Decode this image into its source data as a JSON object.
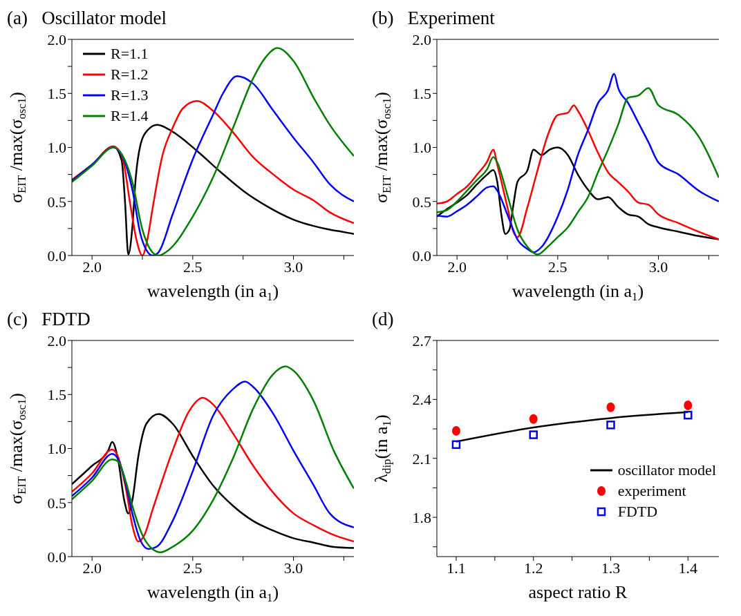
{
  "chart_data": [
    {
      "type": "line",
      "title": "(a)   Oscillator model",
      "xlabel": "wavelength (in a$_{1}$)",
      "ylabel": "σ$_{EIT}$ /max(σ$_{osc1}$)",
      "xlim": [
        1.9,
        3.3
      ],
      "xticks": [
        {
          "value": 2,
          "label": "2.0"
        },
        {
          "value": 2.25,
          "label": null
        },
        2.5,
        {
          "value": 2.75,
          "label": null
        },
        {
          "value": 3,
          "label": "3.0"
        },
        {
          "value": 3.25,
          "label": null
        }
      ],
      "ylim": [
        0,
        2
      ],
      "yticks": [
        {
          "value": 0,
          "label": "0.0"
        },
        {
          "value": 0.25,
          "label": null
        },
        0.5,
        {
          "value": 0.75,
          "label": null
        },
        {
          "value": 1,
          "label": "1.0"
        },
        {
          "value": 1.25,
          "label": null
        },
        1.5,
        {
          "value": 1.75,
          "label": null
        },
        {
          "value": 2,
          "label": "2.0"
        }
      ],
      "legend": "top left",
      "series": [
        {
          "name": "R=1.1",
          "color": "#000000",
          "x": [
            1.9,
            2.0,
            2.106,
            2.147,
            2.164,
            2.18,
            2.2,
            2.217,
            2.24,
            2.276,
            2.323,
            2.405,
            2.52,
            2.64,
            2.757,
            2.874,
            2.99,
            3.18,
            3.24,
            3.3
          ],
          "values": [
            0.7,
            0.84,
            1.01,
            0.88,
            0.49,
            0.01,
            0.26,
            0.72,
            1.02,
            1.16,
            1.21,
            1.14,
            0.97,
            0.77,
            0.59,
            0.45,
            0.34,
            0.24,
            0.22,
            0.2
          ]
        },
        {
          "name": "R=1.2",
          "color": "#ff0000",
          "x": [
            1.9,
            2.0,
            2.106,
            2.15,
            2.19,
            2.22,
            2.25,
            2.275,
            2.3,
            2.35,
            2.4,
            2.45,
            2.52,
            2.6,
            2.7,
            2.8,
            2.9,
            3.0,
            3.1,
            3.18,
            3.3
          ],
          "values": [
            0.7,
            0.84,
            1.01,
            0.91,
            0.47,
            0.15,
            0.0,
            0.15,
            0.43,
            0.93,
            1.18,
            1.36,
            1.43,
            1.34,
            1.14,
            0.91,
            0.75,
            0.61,
            0.51,
            0.4,
            0.3
          ]
        },
        {
          "name": "R=1.3",
          "color": "#0000ff",
          "x": [
            1.9,
            2.0,
            2.106,
            2.15,
            2.2,
            2.24,
            2.27,
            2.3,
            2.33,
            2.4,
            2.5,
            2.6,
            2.65,
            2.72,
            2.8,
            2.9,
            3.0,
            3.1,
            3.18,
            3.3
          ],
          "values": [
            0.69,
            0.84,
            1.0,
            0.92,
            0.61,
            0.2,
            0.05,
            0.0,
            0.03,
            0.38,
            0.89,
            1.3,
            1.5,
            1.66,
            1.59,
            1.34,
            1.09,
            0.86,
            0.66,
            0.5
          ]
        },
        {
          "name": "R=1.4",
          "color": "#008000",
          "x": [
            1.9,
            2.0,
            2.106,
            2.15,
            2.2,
            2.25,
            2.3,
            2.33,
            2.38,
            2.5,
            2.6,
            2.7,
            2.8,
            2.86,
            2.92,
            3.0,
            3.1,
            3.18,
            3.3
          ],
          "values": [
            0.68,
            0.83,
            1.0,
            0.93,
            0.68,
            0.24,
            0.03,
            0.0,
            0.05,
            0.36,
            0.72,
            1.18,
            1.64,
            1.83,
            1.92,
            1.8,
            1.46,
            1.21,
            0.92
          ]
        }
      ]
    },
    {
      "type": "line",
      "title": "(b)   Experiment",
      "xlabel": "wavelength (in a$_{1}$)",
      "ylabel": "σ$_{EIT}$ /max(σ$_{osc1}$)",
      "xlim": [
        1.9,
        3.3
      ],
      "xticks": [
        {
          "value": 2,
          "label": "2.0"
        },
        {
          "value": 2.25,
          "label": null
        },
        2.5,
        {
          "value": 2.75,
          "label": null
        },
        {
          "value": 3,
          "label": "3.0"
        },
        {
          "value": 3.25,
          "label": null
        }
      ],
      "ylim": [
        0,
        2
      ],
      "yticks": [
        {
          "value": 0,
          "label": "0.0"
        },
        {
          "value": 0.25,
          "label": null
        },
        0.5,
        {
          "value": 0.75,
          "label": null
        },
        {
          "value": 1,
          "label": "1.0"
        },
        {
          "value": 1.25,
          "label": null
        },
        1.5,
        {
          "value": 1.75,
          "label": null
        },
        {
          "value": 2,
          "label": "2.0"
        }
      ],
      "series": [
        {
          "color": "#000000",
          "x": [
            1.9,
            1.95,
            2.0,
            2.05,
            2.1,
            2.15,
            2.18,
            2.2,
            2.22,
            2.24,
            2.26,
            2.28,
            2.3,
            2.35,
            2.38,
            2.42,
            2.46,
            2.5,
            2.55,
            2.6,
            2.65,
            2.7,
            2.75,
            2.8,
            2.85,
            2.9,
            2.95,
            3.0,
            3.1,
            3.2,
            3.3
          ],
          "values": [
            0.36,
            0.43,
            0.49,
            0.56,
            0.66,
            0.75,
            0.79,
            0.68,
            0.38,
            0.2,
            0.24,
            0.47,
            0.68,
            0.79,
            0.98,
            0.93,
            0.98,
            1.0,
            0.93,
            0.75,
            0.61,
            0.52,
            0.54,
            0.45,
            0.38,
            0.36,
            0.29,
            0.26,
            0.22,
            0.18,
            0.15
          ]
        },
        {
          "color": "#ff0000",
          "x": [
            1.9,
            1.95,
            2.0,
            2.05,
            2.1,
            2.15,
            2.18,
            2.2,
            2.25,
            2.28,
            2.3,
            2.35,
            2.4,
            2.45,
            2.5,
            2.55,
            2.58,
            2.6,
            2.65,
            2.7,
            2.75,
            2.8,
            2.85,
            2.9,
            2.95,
            3.0,
            3.1,
            3.2,
            3.3
          ],
          "values": [
            0.48,
            0.5,
            0.57,
            0.64,
            0.75,
            0.87,
            0.98,
            0.84,
            0.45,
            0.22,
            0.17,
            0.45,
            0.79,
            1.11,
            1.3,
            1.32,
            1.39,
            1.34,
            1.16,
            0.95,
            0.77,
            0.68,
            0.59,
            0.49,
            0.47,
            0.38,
            0.3,
            0.22,
            0.15
          ]
        },
        {
          "color": "#0000ff",
          "x": [
            1.9,
            1.95,
            2.0,
            2.05,
            2.1,
            2.15,
            2.18,
            2.2,
            2.25,
            2.3,
            2.35,
            2.38,
            2.42,
            2.5,
            2.55,
            2.6,
            2.65,
            2.7,
            2.75,
            2.78,
            2.8,
            2.85,
            2.9,
            2.95,
            3.0,
            3.1,
            3.2,
            3.3
          ],
          "values": [
            0.37,
            0.36,
            0.41,
            0.47,
            0.55,
            0.63,
            0.64,
            0.6,
            0.38,
            0.15,
            0.06,
            0.03,
            0.08,
            0.36,
            0.61,
            0.93,
            1.16,
            1.41,
            1.53,
            1.68,
            1.55,
            1.41,
            1.23,
            1.05,
            0.86,
            0.75,
            0.6,
            0.5
          ]
        },
        {
          "color": "#008000",
          "x": [
            1.9,
            1.95,
            2.0,
            2.05,
            2.1,
            2.15,
            2.18,
            2.2,
            2.25,
            2.3,
            2.35,
            2.4,
            2.45,
            2.5,
            2.55,
            2.6,
            2.65,
            2.7,
            2.75,
            2.8,
            2.85,
            2.9,
            2.95,
            3.0,
            3.1,
            3.2,
            3.3
          ],
          "values": [
            0.4,
            0.42,
            0.5,
            0.6,
            0.7,
            0.8,
            0.91,
            0.86,
            0.56,
            0.24,
            0.08,
            0.01,
            0.08,
            0.17,
            0.26,
            0.4,
            0.54,
            0.77,
            0.98,
            1.21,
            1.46,
            1.48,
            1.55,
            1.39,
            1.3,
            1.1,
            0.72
          ]
        }
      ]
    },
    {
      "type": "line",
      "title": "(c)   FDTD",
      "xlabel": "wavelength (in a$_{1}$)",
      "ylabel": "σ$_{EIT}$ /max(σ$_{osc1}$)",
      "xlim": [
        1.9,
        3.3
      ],
      "xticks": [
        {
          "value": 2,
          "label": "2.0"
        },
        {
          "value": 2.25,
          "label": null
        },
        2.5,
        {
          "value": 2.75,
          "label": null
        },
        {
          "value": 3,
          "label": "3.0"
        },
        {
          "value": 3.25,
          "label": null
        }
      ],
      "ylim": [
        0,
        2
      ],
      "yticks": [
        {
          "value": 0,
          "label": "0.0"
        },
        {
          "value": 0.25,
          "label": null
        },
        0.5,
        {
          "value": 0.75,
          "label": null
        },
        {
          "value": 1,
          "label": "1.0"
        },
        {
          "value": 1.25,
          "label": null
        },
        1.5,
        {
          "value": 1.75,
          "label": null
        },
        {
          "value": 2,
          "label": "2.0"
        }
      ],
      "series": [
        {
          "color": "#000000",
          "x": [
            1.9,
            2.0,
            2.08,
            2.1,
            2.13,
            2.16,
            2.18,
            2.2,
            2.23,
            2.27,
            2.33,
            2.4,
            2.5,
            2.6,
            2.7,
            2.8,
            2.9,
            3.0,
            3.1,
            3.2,
            3.3
          ],
          "values": [
            0.67,
            0.84,
            0.98,
            1.06,
            0.89,
            0.52,
            0.4,
            0.52,
            0.93,
            1.23,
            1.32,
            1.23,
            0.93,
            0.66,
            0.47,
            0.33,
            0.24,
            0.17,
            0.13,
            0.09,
            0.08
          ]
        },
        {
          "color": "#ff0000",
          "x": [
            1.9,
            2.0,
            2.1,
            2.13,
            2.17,
            2.2,
            2.23,
            2.26,
            2.3,
            2.4,
            2.48,
            2.55,
            2.6,
            2.7,
            2.8,
            2.9,
            3.0,
            3.1,
            3.2,
            3.3
          ],
          "values": [
            0.6,
            0.77,
            0.99,
            0.92,
            0.61,
            0.29,
            0.14,
            0.2,
            0.43,
            0.98,
            1.34,
            1.47,
            1.41,
            1.14,
            0.84,
            0.59,
            0.4,
            0.29,
            0.2,
            0.14
          ]
        },
        {
          "color": "#0000ff",
          "x": [
            1.9,
            2.0,
            2.1,
            2.13,
            2.17,
            2.2,
            2.24,
            2.28,
            2.32,
            2.4,
            2.5,
            2.6,
            2.7,
            2.76,
            2.8,
            2.9,
            3.0,
            3.1,
            3.18,
            3.3
          ],
          "values": [
            0.56,
            0.73,
            0.95,
            0.9,
            0.65,
            0.4,
            0.15,
            0.07,
            0.09,
            0.33,
            0.79,
            1.3,
            1.55,
            1.62,
            1.57,
            1.32,
            0.98,
            0.66,
            0.4,
            0.27
          ]
        },
        {
          "color": "#008000",
          "x": [
            1.9,
            2.0,
            2.1,
            2.13,
            2.17,
            2.2,
            2.25,
            2.3,
            2.34,
            2.4,
            2.5,
            2.6,
            2.7,
            2.8,
            2.9,
            2.96,
            3.0,
            3.1,
            3.2,
            3.3
          ],
          "values": [
            0.53,
            0.7,
            0.9,
            0.88,
            0.68,
            0.47,
            0.2,
            0.07,
            0.04,
            0.09,
            0.24,
            0.52,
            0.91,
            1.37,
            1.69,
            1.76,
            1.72,
            1.44,
            0.98,
            0.63
          ]
        }
      ]
    },
    {
      "type": "line",
      "title": "(d)",
      "xlabel": "aspect ratio  R",
      "ylabel": "λ$_{dip}$(in a$_{1}$)",
      "xlim": [
        1.075,
        1.44
      ],
      "xticks": [
        1.1,
        {
          "value": 1.15,
          "label": null
        },
        1.2,
        {
          "value": 1.25,
          "label": null
        },
        1.3,
        {
          "value": 1.35,
          "label": null
        },
        1.4
      ],
      "ylim": [
        1.6,
        2.7
      ],
      "yticks": [
        {
          "value": 1.65,
          "label": null
        },
        1.8,
        {
          "value": 1.95,
          "label": null
        },
        2.1,
        {
          "value": 2.25,
          "label": null
        },
        2.4,
        {
          "value": 2.55,
          "label": null
        },
        2.7
      ],
      "legend": "bottom right",
      "series": [
        {
          "name": "oscillator model",
          "color": "#000000",
          "x": [
            1.1,
            1.2,
            1.3,
            1.4
          ],
          "values": [
            2.185,
            2.257,
            2.305,
            2.335
          ]
        },
        {
          "name": "experiment",
          "type": "scatter",
          "marker": "circle",
          "color": "#ff0000",
          "x": [
            1.1,
            1.2,
            1.3,
            1.4
          ],
          "values": [
            2.24,
            2.3,
            2.36,
            2.37
          ]
        },
        {
          "name": "FDTD",
          "type": "scatter",
          "marker": "square",
          "color": "#0000ff",
          "x": [
            1.1,
            1.2,
            1.3,
            1.4
          ],
          "values": [
            2.17,
            2.22,
            2.27,
            2.32
          ]
        }
      ]
    }
  ]
}
